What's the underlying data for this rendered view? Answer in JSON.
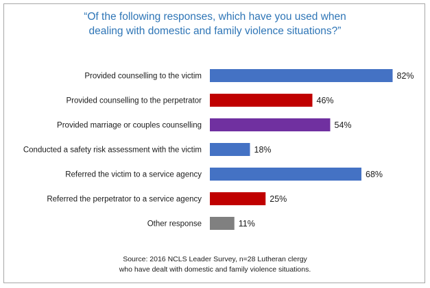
{
  "chart_data": {
    "type": "bar",
    "orientation": "horizontal",
    "title_lines": [
      "“Of the following responses, which have you used when",
      "dealing with domestic and family violence situations?”"
    ],
    "categories": [
      "Provided counselling to the victim",
      "Provided counselling to the perpetrator",
      "Provided marriage or couples counselling",
      "Conducted a safety risk assessment with the victim",
      "Referred the victim to a service agency",
      "Referred the perpetrator to a service agency",
      "Other response"
    ],
    "values": [
      82,
      46,
      54,
      18,
      68,
      25,
      11
    ],
    "value_labels": [
      "82%",
      "46%",
      "54%",
      "18%",
      "68%",
      "25%",
      "11%"
    ],
    "bar_colors": [
      "#4472c4",
      "#c00000",
      "#7030a0",
      "#4472c4",
      "#4472c4",
      "#c00000",
      "#808080"
    ],
    "xlim": [
      0,
      100
    ],
    "grid": false,
    "legend": "none",
    "source_lines": [
      "Source: 2016 NCLS Leader Survey, n=28 Lutheran clergy",
      "who have dealt with domestic and family violence situations."
    ]
  }
}
